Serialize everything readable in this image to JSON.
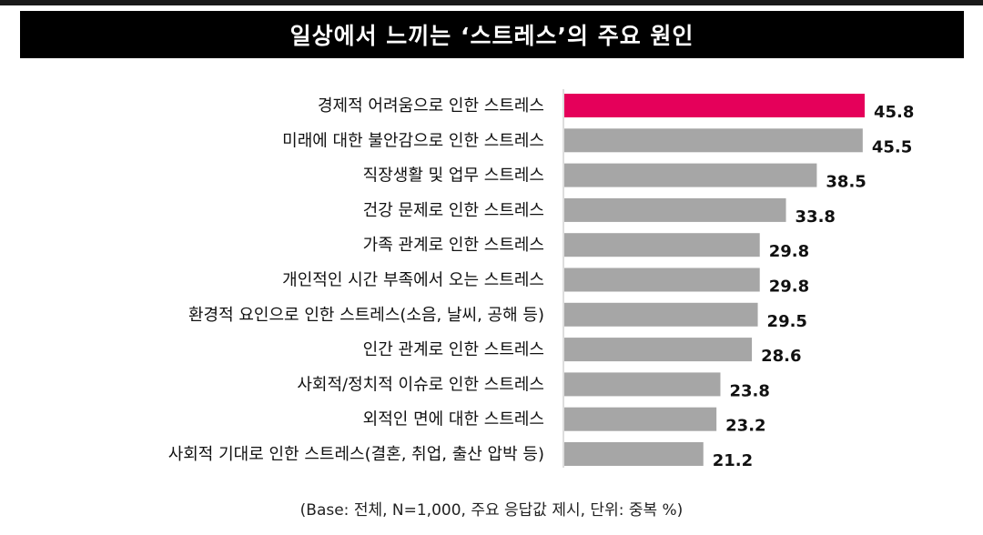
{
  "title": "일상에서 느끼는 ‘스트레스’의 주요 원인",
  "footnote": "(Base: 전체, N=1,000, 주요 응답값 제시, 단위: 중복 %)",
  "colors": {
    "highlight": "#e5005a",
    "bar": "#a6a6a6",
    "title_bg": "#000000"
  },
  "chart_data": {
    "type": "bar",
    "orientation": "horizontal",
    "categories": [
      "경제적 어려움으로 인한 스트레스",
      "미래에 대한 불안감으로 인한 스트레스",
      "직장생활 및 업무 스트레스",
      "건강 문제로 인한 스트레스",
      "가족 관계로 인한 스트레스",
      "개인적인 시간 부족에서 오는 스트레스",
      "환경적 요인으로 인한 스트레스(소음, 날씨, 공해 등)",
      "인간 관계로 인한 스트레스",
      "사회적/정치적 이슈로 인한 스트레스",
      "외적인 면에 대한 스트레스",
      "사회적 기대로 인한 스트레스(결혼, 취업, 출산 압박 등)"
    ],
    "values": [
      45.8,
      45.5,
      38.5,
      33.8,
      29.8,
      29.8,
      29.5,
      28.6,
      23.8,
      23.2,
      21.2
    ],
    "value_labels": [
      "45.8",
      "45.5",
      "38.5",
      "33.8",
      "29.8",
      "29.8",
      "29.5",
      "28.6",
      "23.8",
      "23.2",
      "21.2"
    ],
    "highlight_index": 0,
    "xlim": [
      0,
      45.8
    ],
    "grid": false
  }
}
